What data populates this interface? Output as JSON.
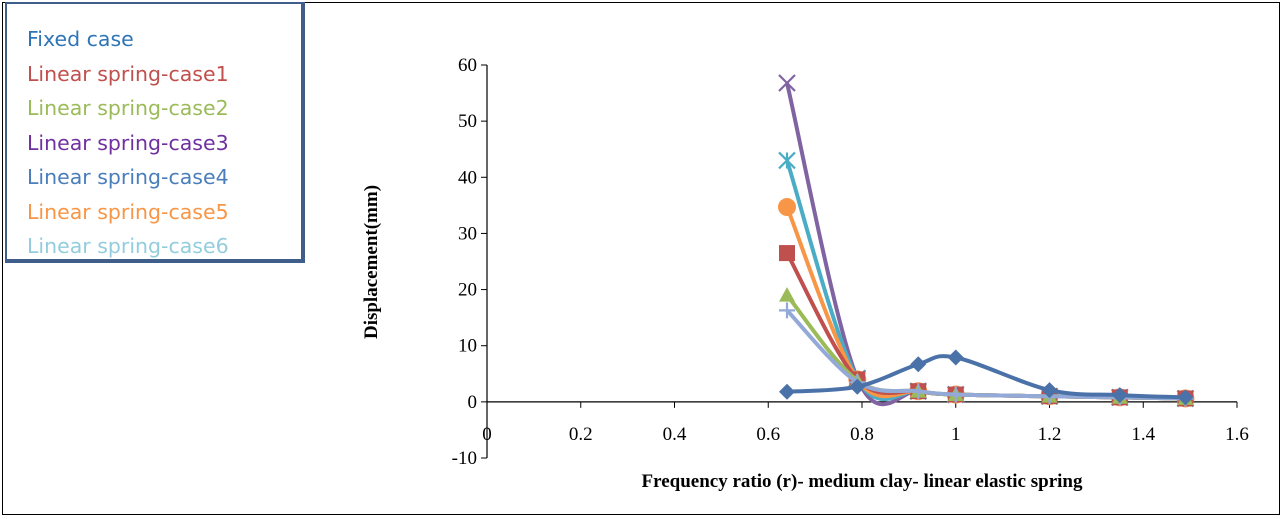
{
  "chart_data": {
    "type": "line",
    "title": "",
    "xlabel": "Frequency ratio (r)- medium clay- linear elastic spring",
    "ylabel": "Displacement(mm)",
    "xlim": [
      0,
      1.6
    ],
    "ylim": [
      -10,
      60
    ],
    "x_ticks": [
      "0",
      "0.2",
      "0.4",
      "0.6",
      "0.8",
      "1",
      "1.2",
      "1.4",
      "1.6"
    ],
    "y_ticks": [
      "-10",
      "0",
      "10",
      "20",
      "30",
      "40",
      "50",
      "60"
    ],
    "legend_position": "top-left",
    "series": [
      {
        "name": "Fixed case",
        "color": "#4a72a8",
        "marker": "diamond",
        "x": [
          0.64,
          0.79,
          0.92,
          1.0,
          1.2,
          1.35,
          1.49
        ],
        "y": [
          1.8,
          2.7,
          6.7,
          7.9,
          2.1,
          1.2,
          0.8
        ]
      },
      {
        "name": "Linear spring-case1",
        "color": "#c0504d",
        "marker": "square",
        "x": [
          0.64,
          0.79,
          0.92,
          1.0,
          1.2,
          1.35,
          1.49
        ],
        "y": [
          26.5,
          4.0,
          1.9,
          1.3,
          1.0,
          0.8,
          0.6
        ]
      },
      {
        "name": "Linear spring-case2",
        "color": "#9bbb59",
        "marker": "triangle",
        "x": [
          0.64,
          0.79,
          0.92,
          1.0,
          1.2,
          1.35,
          1.49
        ],
        "y": [
          19.0,
          3.8,
          1.9,
          1.3,
          1.0,
          0.8,
          0.6
        ]
      },
      {
        "name": "Linear spring-case3",
        "color": "#8064a2",
        "marker": "x",
        "x": [
          0.64,
          0.79,
          0.92,
          1.0,
          1.2,
          1.35,
          1.49
        ],
        "y": [
          56.8,
          4.2,
          1.9,
          1.3,
          1.0,
          0.8,
          0.6
        ]
      },
      {
        "name": "Linear spring-case4",
        "color": "#4bacc6",
        "marker": "star",
        "x": [
          0.64,
          0.79,
          0.92,
          1.0,
          1.2,
          1.35,
          1.49
        ],
        "y": [
          43.0,
          4.1,
          1.9,
          1.3,
          1.0,
          0.8,
          0.6
        ]
      },
      {
        "name": "Linear spring-case5",
        "color": "#f79646",
        "marker": "circle",
        "x": [
          0.64,
          0.79,
          0.92,
          1.0,
          1.2,
          1.35,
          1.49
        ],
        "y": [
          34.7,
          4.0,
          1.9,
          1.3,
          1.0,
          0.8,
          0.6
        ]
      },
      {
        "name": "Linear spring-case6",
        "color": "#93a9d8",
        "marker": "plus",
        "x": [
          0.64,
          0.79,
          0.92,
          1.0,
          1.2,
          1.35,
          1.49
        ],
        "y": [
          16.3,
          3.5,
          1.9,
          1.3,
          1.0,
          0.8,
          0.6
        ]
      }
    ],
    "legend_colors": [
      "#2e75b6",
      "#c0504d",
      "#9bbb59",
      "#7030a0",
      "#4a7ebb",
      "#f79646",
      "#93cddd"
    ]
  }
}
